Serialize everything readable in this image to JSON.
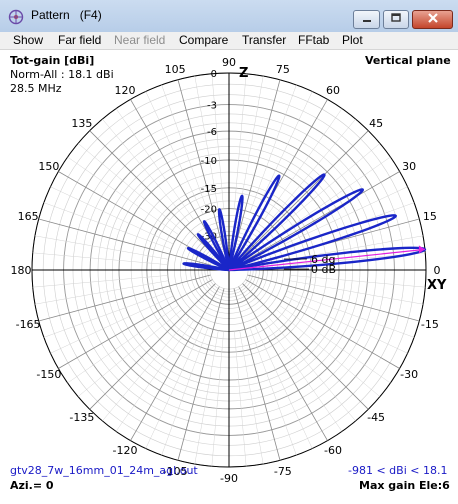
{
  "window": {
    "title": "Pattern",
    "subtitle": "(F4)"
  },
  "menu": [
    {
      "label": "Show",
      "enabled": true
    },
    {
      "label": "Far field",
      "enabled": true
    },
    {
      "label": "Near field",
      "enabled": false
    },
    {
      "label": "Compare",
      "enabled": true
    },
    {
      "label": "Transfer",
      "enabled": true
    },
    {
      "label": "FFtab",
      "enabled": true
    },
    {
      "label": "Plot",
      "enabled": true
    }
  ],
  "plot_info": {
    "heading": "Tot-gain [dBi]",
    "norm": "Norm-All : 18.1 dBi",
    "frequency": "28.5 MHz",
    "plane": "Vertical plane",
    "filename": "gtv28_7w_16mm_01_24m_agl.out",
    "gain_range": "-981 < dBi < 18.1",
    "azimuth": "Azi.= 0",
    "max_gain": "Max gain Ele:6",
    "axis_z": "Z",
    "axis_xy": "XY",
    "marker_6dg": "6 dg",
    "marker_0db": "0 dB"
  },
  "chart_data": {
    "type": "polar",
    "angle_labels": [
      "0",
      "15",
      "30",
      "45",
      "60",
      "75",
      "90",
      "105",
      "120",
      "135",
      "150",
      "165",
      "180",
      "-165",
      "-150",
      "-135",
      "-120",
      "-105",
      "-90",
      "-75",
      "-60",
      "-45",
      "-30",
      "-15"
    ],
    "angle_values": [
      0,
      15,
      30,
      45,
      60,
      75,
      90,
      105,
      120,
      135,
      150,
      165,
      180,
      -165,
      -150,
      -135,
      -120,
      -105,
      -90,
      -75,
      -60,
      -45,
      -30,
      -15
    ],
    "ring_labels": [
      "0",
      "-3",
      "-6",
      "-10",
      "-15",
      "-20",
      "-30"
    ],
    "ring_db": [
      0,
      -3,
      -6,
      -10,
      -15,
      -20,
      -30
    ],
    "colors": {
      "pattern": "#1a26c8",
      "max_marker": "#e020e0",
      "grid": "#000000"
    },
    "series": [
      {
        "name": "Tot-gain",
        "lobes": [
          {
            "center_deg": 6,
            "gain_db": 0.0,
            "width_deg": 5
          },
          {
            "center_deg": 18,
            "gain_db": -2.0,
            "width_deg": 5
          },
          {
            "center_deg": 31,
            "gain_db": -4.0,
            "width_deg": 5
          },
          {
            "center_deg": 45,
            "gain_db": -6.5,
            "width_deg": 5
          },
          {
            "center_deg": 62,
            "gain_db": -10.5,
            "width_deg": 5
          },
          {
            "center_deg": 80,
            "gain_db": -16.5,
            "width_deg": 5
          },
          {
            "center_deg": 99,
            "gain_db": -20.0,
            "width_deg": 5
          },
          {
            "center_deg": 117,
            "gain_db": -22.0,
            "width_deg": 5
          },
          {
            "center_deg": 131,
            "gain_db": -24.5,
            "width_deg": 5
          },
          {
            "center_deg": 152,
            "gain_db": -24.8,
            "width_deg": 5
          },
          {
            "center_deg": 172,
            "gain_db": -25.0,
            "width_deg": 5
          }
        ]
      }
    ],
    "max_gain": {
      "elevation_deg": 6,
      "gain_dbi": 18.1
    }
  }
}
